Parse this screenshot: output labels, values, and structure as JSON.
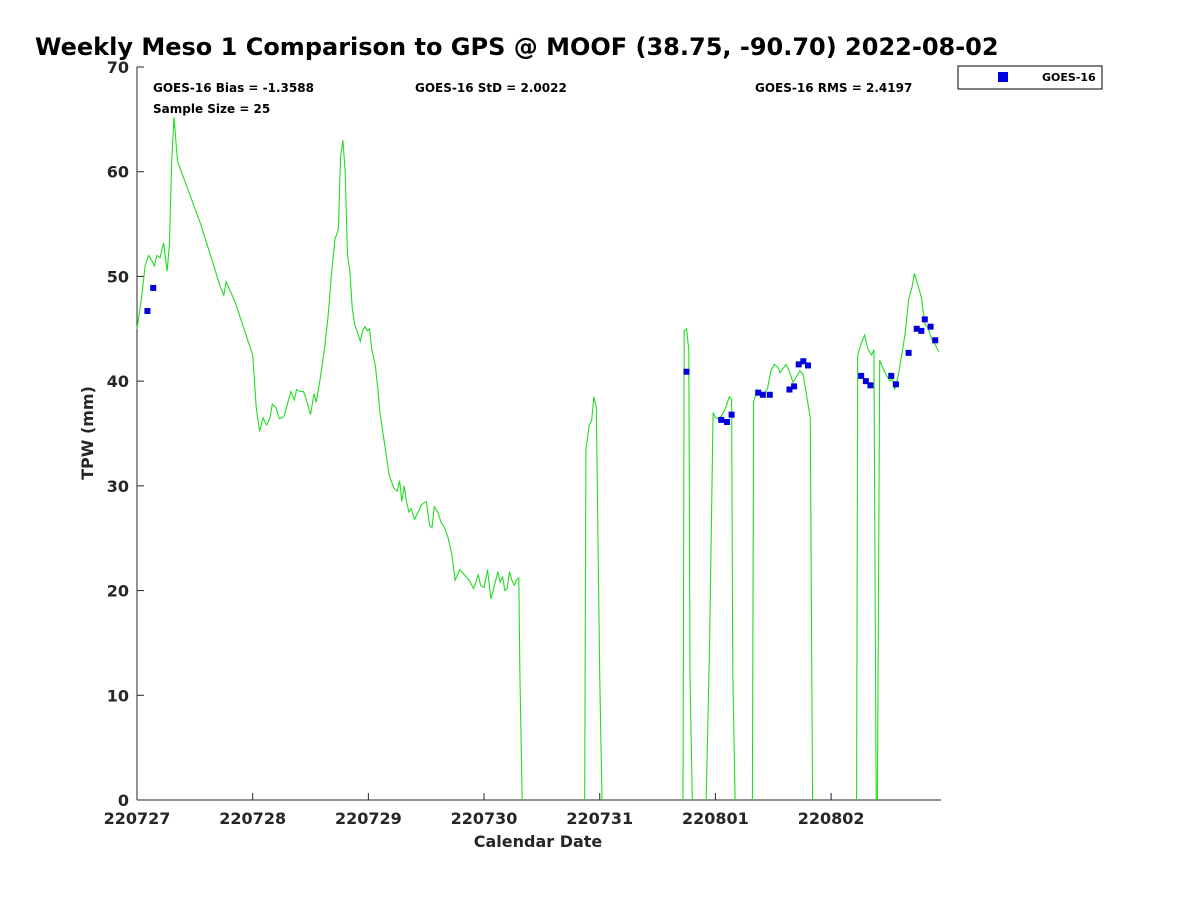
{
  "chart_data": {
    "type": "line",
    "title": "Weekly Meso 1 Comparison to GPS @ MOOF (38.75, -90.70) 2022-08-02",
    "xlabel": "Calendar Date",
    "ylabel": "TPW (mm)",
    "xlim": [
      0,
      6.95
    ],
    "ylim": [
      0,
      70
    ],
    "x_ticks": [
      {
        "value": 0,
        "label": "220727"
      },
      {
        "value": 1,
        "label": "220728"
      },
      {
        "value": 2,
        "label": "220729"
      },
      {
        "value": 3,
        "label": "220730"
      },
      {
        "value": 4,
        "label": "220731"
      },
      {
        "value": 5,
        "label": "220801"
      },
      {
        "value": 6,
        "label": "220802"
      }
    ],
    "y_ticks": [
      0,
      10,
      20,
      30,
      40,
      50,
      60,
      70
    ],
    "x_unit_note": "x values are fractional days starting 220727",
    "stats": {
      "bias": "GOES-16 Bias = -1.3588",
      "std": "GOES-16 StD = 2.0022",
      "rms": "GOES-16 RMS = 2.4197",
      "sample_size": "Sample Size = 25"
    },
    "legend": {
      "position": "top-right-outside",
      "entries": [
        {
          "name": "GOES-16",
          "color": "#0000dd",
          "marker": "square"
        }
      ]
    },
    "grid": false,
    "series": [
      {
        "name": "GPS",
        "color": "#22dd22",
        "style": "line",
        "segments": [
          [
            [
              0.0,
              45.0
            ],
            [
              0.04,
              48.0
            ],
            [
              0.07,
              51.0
            ],
            [
              0.1,
              52.0
            ],
            [
              0.13,
              51.5
            ],
            [
              0.15,
              51.0
            ],
            [
              0.17,
              52.0
            ],
            [
              0.2,
              51.8
            ],
            [
              0.23,
              53.2
            ],
            [
              0.26,
              50.5
            ],
            [
              0.28,
              53.0
            ],
            [
              0.3,
              61.0
            ],
            [
              0.32,
              65.2
            ],
            [
              0.35,
              61.0
            ],
            [
              0.45,
              58.0
            ],
            [
              0.55,
              55.0
            ],
            [
              0.65,
              51.5
            ],
            [
              0.72,
              49.0
            ],
            [
              0.75,
              48.2
            ],
            [
              0.77,
              49.5
            ],
            [
              0.85,
              47.5
            ],
            [
              1.0,
              42.5
            ],
            [
              1.03,
              37.5
            ],
            [
              1.06,
              35.2
            ],
            [
              1.09,
              36.5
            ],
            [
              1.12,
              35.8
            ],
            [
              1.15,
              36.5
            ],
            [
              1.17,
              37.8
            ],
            [
              1.2,
              37.5
            ],
            [
              1.23,
              36.4
            ],
            [
              1.27,
              36.6
            ],
            [
              1.3,
              37.8
            ],
            [
              1.33,
              39.0
            ],
            [
              1.36,
              38.2
            ],
            [
              1.38,
              39.2
            ],
            [
              1.41,
              39.0
            ],
            [
              1.44,
              39.0
            ],
            [
              1.47,
              38.0
            ],
            [
              1.5,
              36.8
            ],
            [
              1.53,
              38.8
            ],
            [
              1.55,
              38.0
            ],
            [
              1.58,
              40.0
            ],
            [
              1.62,
              43.0
            ],
            [
              1.65,
              46.0
            ],
            [
              1.68,
              50.0
            ],
            [
              1.71,
              53.5
            ],
            [
              1.74,
              54.5
            ],
            [
              1.76,
              61.5
            ],
            [
              1.78,
              63.0
            ],
            [
              1.8,
              60.0
            ],
            [
              1.82,
              52.0
            ],
            [
              1.84,
              50.5
            ],
            [
              1.86,
              47.0
            ],
            [
              1.88,
              45.5
            ],
            [
              1.91,
              44.5
            ],
            [
              1.93,
              43.8
            ],
            [
              1.95,
              44.8
            ],
            [
              1.97,
              45.2
            ],
            [
              1.99,
              44.8
            ],
            [
              2.01,
              45.0
            ],
            [
              2.03,
              43.0
            ],
            [
              2.06,
              41.5
            ],
            [
              2.08,
              39.5
            ],
            [
              2.1,
              37.0
            ],
            [
              2.14,
              34.0
            ],
            [
              2.18,
              31.0
            ],
            [
              2.22,
              29.8
            ],
            [
              2.25,
              29.5
            ],
            [
              2.27,
              30.5
            ],
            [
              2.29,
              28.5
            ],
            [
              2.31,
              30.0
            ],
            [
              2.33,
              28.5
            ],
            [
              2.35,
              27.5
            ],
            [
              2.37,
              27.8
            ],
            [
              2.4,
              26.8
            ],
            [
              2.43,
              27.5
            ],
            [
              2.46,
              28.2
            ],
            [
              2.5,
              28.5
            ],
            [
              2.53,
              26.2
            ],
            [
              2.55,
              26.0
            ],
            [
              2.57,
              28.0
            ],
            [
              2.6,
              27.5
            ],
            [
              2.63,
              26.5
            ],
            [
              2.66,
              26.0
            ],
            [
              2.69,
              25.0
            ],
            [
              2.72,
              23.5
            ],
            [
              2.75,
              21.0
            ],
            [
              2.79,
              22.0
            ],
            [
              2.83,
              21.5
            ],
            [
              2.87,
              21.0
            ],
            [
              2.91,
              20.2
            ],
            [
              2.95,
              21.5
            ],
            [
              2.97,
              20.5
            ],
            [
              3.0,
              20.3
            ],
            [
              3.03,
              22.0
            ],
            [
              3.06,
              19.2
            ],
            [
              3.09,
              20.5
            ],
            [
              3.12,
              21.8
            ],
            [
              3.14,
              20.8
            ],
            [
              3.16,
              21.3
            ],
            [
              3.18,
              20.0
            ],
            [
              3.2,
              20.2
            ],
            [
              3.22,
              21.8
            ],
            [
              3.24,
              21.0
            ],
            [
              3.26,
              20.5
            ],
            [
              3.28,
              21.0
            ],
            [
              3.3,
              21.2
            ],
            [
              3.31,
              12.0
            ],
            [
              3.33,
              0.0
            ]
          ],
          [
            [
              3.87,
              0.0
            ],
            [
              3.88,
              33.5
            ],
            [
              3.91,
              35.8
            ],
            [
              3.93,
              36.2
            ],
            [
              3.95,
              38.5
            ],
            [
              3.97,
              37.5
            ],
            [
              4.0,
              12.0
            ],
            [
              4.02,
              0.0
            ]
          ],
          [
            [
              4.72,
              0.0
            ],
            [
              4.73,
              44.8
            ],
            [
              4.75,
              45.0
            ],
            [
              4.77,
              43.0
            ],
            [
              4.78,
              12.0
            ],
            [
              4.8,
              0.0
            ]
          ],
          [
            [
              4.92,
              0.0
            ],
            [
              4.95,
              15.0
            ],
            [
              4.98,
              37.0
            ],
            [
              5.0,
              36.5
            ],
            [
              5.03,
              36.4
            ],
            [
              5.06,
              36.8
            ],
            [
              5.09,
              37.5
            ],
            [
              5.12,
              38.5
            ],
            [
              5.14,
              38.2
            ],
            [
              5.15,
              12.0
            ],
            [
              5.17,
              0.0
            ]
          ],
          [
            [
              5.32,
              0.0
            ],
            [
              5.33,
              38.0
            ],
            [
              5.36,
              39.2
            ],
            [
              5.39,
              38.7
            ],
            [
              5.42,
              38.8
            ],
            [
              5.45,
              39.3
            ],
            [
              5.48,
              41.0
            ],
            [
              5.51,
              41.6
            ],
            [
              5.54,
              41.3
            ],
            [
              5.56,
              40.8
            ],
            [
              5.59,
              41.3
            ],
            [
              5.61,
              41.6
            ],
            [
              5.64,
              40.9
            ],
            [
              5.67,
              39.9
            ],
            [
              5.7,
              40.4
            ],
            [
              5.73,
              41.0
            ],
            [
              5.76,
              40.6
            ],
            [
              5.79,
              38.5
            ],
            [
              5.82,
              36.5
            ],
            [
              5.83,
              18.0
            ],
            [
              5.84,
              0.0
            ]
          ],
          [
            [
              6.22,
              0.0
            ],
            [
              6.23,
              42.5
            ],
            [
              6.26,
              43.6
            ],
            [
              6.29,
              44.4
            ],
            [
              6.32,
              43.0
            ],
            [
              6.35,
              42.5
            ],
            [
              6.37,
              43.0
            ],
            [
              6.38,
              20.0
            ],
            [
              6.39,
              0.0
            ]
          ],
          [
            [
              6.4,
              0.0
            ],
            [
              6.42,
              42.0
            ],
            [
              6.45,
              41.2
            ],
            [
              6.48,
              40.5
            ],
            [
              6.51,
              40.0
            ],
            [
              6.53,
              40.2
            ],
            [
              6.55,
              39.2
            ],
            [
              6.58,
              40.5
            ],
            [
              6.61,
              42.5
            ],
            [
              6.64,
              44.5
            ],
            [
              6.67,
              47.8
            ],
            [
              6.7,
              49.0
            ],
            [
              6.72,
              50.3
            ],
            [
              6.75,
              49.2
            ],
            [
              6.78,
              48.0
            ],
            [
              6.81,
              45.5
            ],
            [
              6.84,
              45.0
            ],
            [
              6.87,
              44.0
            ],
            [
              6.9,
              43.5
            ],
            [
              6.93,
              42.8
            ]
          ]
        ]
      },
      {
        "name": "GOES-16",
        "color": "#0000dd",
        "style": "square-marker",
        "points": [
          [
            0.09,
            46.7
          ],
          [
            0.14,
            48.9
          ],
          [
            4.75,
            40.9
          ],
          [
            5.05,
            36.3
          ],
          [
            5.1,
            36.1
          ],
          [
            5.14,
            36.8
          ],
          [
            5.37,
            38.9
          ],
          [
            5.41,
            38.7
          ],
          [
            5.47,
            38.7
          ],
          [
            5.64,
            39.2
          ],
          [
            5.68,
            39.5
          ],
          [
            5.72,
            41.6
          ],
          [
            5.76,
            41.9
          ],
          [
            5.8,
            41.5
          ],
          [
            6.26,
            40.5
          ],
          [
            6.3,
            40.0
          ],
          [
            6.34,
            39.6
          ],
          [
            6.52,
            40.5
          ],
          [
            6.56,
            39.7
          ],
          [
            6.67,
            42.7
          ],
          [
            6.74,
            45.0
          ],
          [
            6.78,
            44.8
          ],
          [
            6.81,
            45.9
          ],
          [
            6.86,
            45.2
          ],
          [
            6.9,
            43.9
          ]
        ]
      }
    ]
  }
}
